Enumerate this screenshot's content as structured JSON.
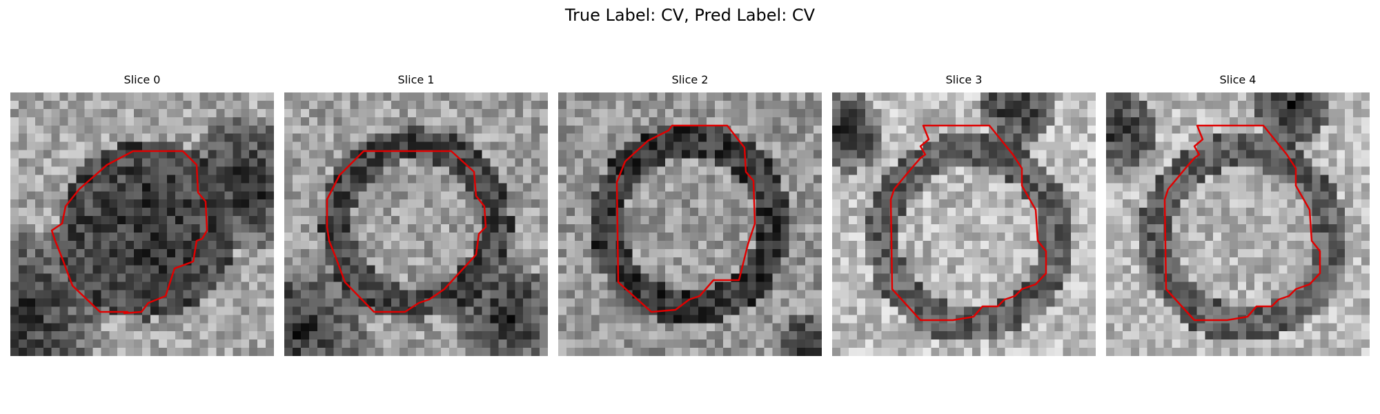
{
  "figure": {
    "title": "True Label: CV, Pred Label: CV"
  },
  "panels": [
    {
      "title": "Slice 0"
    },
    {
      "title": "Slice 1"
    },
    {
      "title": "Slice 2"
    },
    {
      "title": "Slice 3"
    },
    {
      "title": "Slice 4"
    }
  ],
  "colors": {
    "contour": "#e00000"
  }
}
